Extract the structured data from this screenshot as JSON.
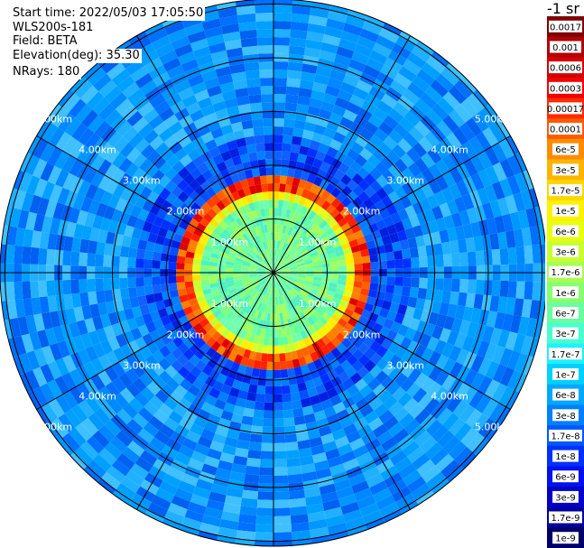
{
  "header": {
    "start_time": "Start time: 2022/05/03 17:05:50",
    "instrument": "WLS200s-181",
    "field": "Field: BETA",
    "elevation": "Elevation(deg): 35.30",
    "nrays": "NRays: 180"
  },
  "colorbar": {
    "unit_label": "-1 sr",
    "ticks": [
      "0.0017",
      "0.001",
      "0.0006",
      "0.0003",
      "0.00017",
      "0.0001",
      "6e-5",
      "3e-5",
      "1.7e-5",
      "1e-5",
      "6e-6",
      "3e-6",
      "1.7e-6",
      "1e-6",
      "6e-7",
      "3e-7",
      "1.7e-7",
      "1e-7",
      "6e-8",
      "3e-8",
      "1.7e-8",
      "1e-8",
      "6e-9",
      "3e-9",
      "1.7e-9",
      "1e-9"
    ],
    "colors": [
      "#7f0000",
      "#b30000",
      "#d40000",
      "#f00000",
      "#ff2a00",
      "#ff5a00",
      "#ff8c00",
      "#ffb400",
      "#ffd600",
      "#fff200",
      "#e8ff10",
      "#c8ff30",
      "#a8ff50",
      "#88ff70",
      "#68ffa0",
      "#48ffd0",
      "#20f0ff",
      "#00d0ff",
      "#00a8ff",
      "#0080ff",
      "#0058ff",
      "#0030ff",
      "#0010f0",
      "#0000c8",
      "#00009c",
      "#00006a"
    ]
  },
  "chart_data": {
    "type": "heatmap",
    "projection": "polar PPI",
    "field": "BETA",
    "range_rings_km": [
      1,
      2,
      3,
      4,
      5
    ],
    "ring_labels": [
      "1.00km",
      "2.00km",
      "3.00km",
      "4.00km",
      "5.00km"
    ],
    "radial_lines_deg": [
      0,
      30,
      60,
      90,
      120,
      150,
      180,
      210,
      240,
      270,
      300,
      330
    ],
    "max_range_km": 6.9,
    "nrays": 180,
    "regions": [
      {
        "range_km": [
          0,
          1.3
        ],
        "value_level": "1.7e-7 to 1.7e-6"
      },
      {
        "range_km": [
          1.3,
          1.55
        ],
        "value_level": "6e-6 to 1e-5"
      },
      {
        "range_km": [
          1.55,
          1.85
        ],
        "value_level": "0.0003 to 0.0017"
      },
      {
        "range_km": [
          1.85,
          2.6
        ],
        "value_level": "3e-9 to 1e-8"
      },
      {
        "range_km": [
          2.6,
          6.9
        ],
        "value_level": "3e-8 to 1e-7"
      }
    ]
  }
}
